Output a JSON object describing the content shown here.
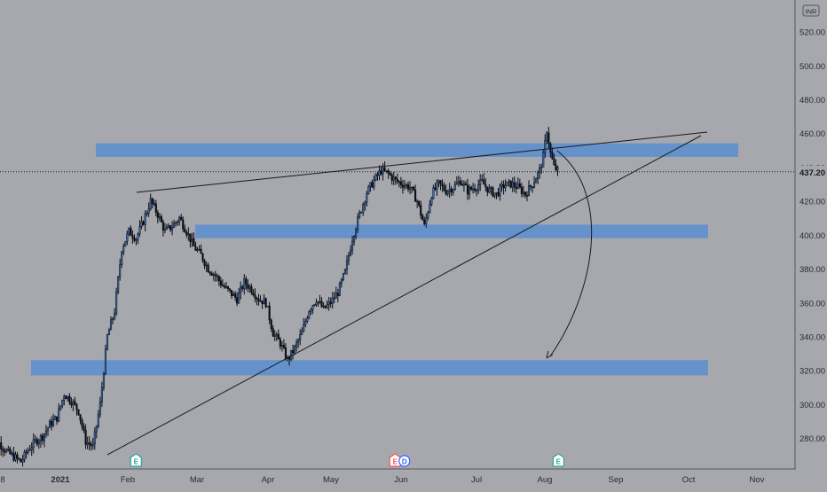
{
  "chart_data": {
    "type": "candlestick",
    "currency": "INR",
    "last_price": "437.20",
    "y_ticks": [
      "520.00",
      "500.00",
      "480.00",
      "460.00",
      "440.00",
      "420.00",
      "400.00",
      "380.00",
      "360.00",
      "340.00",
      "320.00",
      "300.00",
      "280.00"
    ],
    "x_ticks": [
      "8",
      "2021",
      "Feb",
      "Mar",
      "Apr",
      "May",
      "Jun",
      "Jul",
      "Aug",
      "Sep",
      "Oct",
      "Nov"
    ],
    "ylim": [
      262,
      530
    ],
    "zones": [
      {
        "low": 446,
        "high": 454
      },
      {
        "low": 398,
        "high": 406
      },
      {
        "low": 317,
        "high": 326
      }
    ],
    "trendlines": [
      {
        "from": [
          "Jan 28",
          422
        ],
        "to": [
          "Oct 8",
          458
        ]
      },
      {
        "from": [
          "Jan 24",
          269
        ],
        "to": [
          "Oct 8",
          456
        ]
      }
    ],
    "events": [
      {
        "label": "E",
        "date": "Feb 6",
        "color": "#26a69a"
      },
      {
        "label": "E",
        "date": "May 28",
        "color": "#ef5350"
      },
      {
        "label": "D",
        "date": "Jun 1",
        "color": "#2962ff"
      },
      {
        "label": "E",
        "date": "Aug 6",
        "color": "#26a69a"
      }
    ],
    "price_path": [
      [
        0,
        275
      ],
      [
        6,
        277
      ],
      [
        10,
        272
      ],
      [
        14,
        269
      ],
      [
        18,
        266
      ],
      [
        22,
        273
      ],
      [
        26,
        278
      ],
      [
        30,
        281
      ],
      [
        34,
        288
      ],
      [
        38,
        292
      ],
      [
        42,
        306
      ],
      [
        46,
        302
      ],
      [
        50,
        296
      ],
      [
        54,
        278
      ],
      [
        58,
        275
      ],
      [
        62,
        300
      ],
      [
        66,
        340
      ],
      [
        70,
        355
      ],
      [
        74,
        392
      ],
      [
        78,
        402
      ],
      [
        82,
        398
      ],
      [
        86,
        408
      ],
      [
        90,
        420
      ],
      [
        94,
        412
      ],
      [
        98,
        402
      ],
      [
        102,
        405
      ],
      [
        106,
        410
      ],
      [
        110,
        402
      ],
      [
        114,
        393
      ],
      [
        118,
        388
      ],
      [
        122,
        380
      ],
      [
        126,
        376
      ],
      [
        130,
        370
      ],
      [
        134,
        366
      ],
      [
        138,
        362
      ],
      [
        142,
        372
      ],
      [
        146,
        368
      ],
      [
        150,
        362
      ],
      [
        154,
        360
      ],
      [
        158,
        342
      ],
      [
        162,
        336
      ],
      [
        166,
        326
      ],
      [
        170,
        333
      ],
      [
        174,
        342
      ],
      [
        178,
        356
      ],
      [
        182,
        362
      ],
      [
        186,
        356
      ],
      [
        190,
        360
      ],
      [
        194,
        366
      ],
      [
        198,
        378
      ],
      [
        202,
        398
      ],
      [
        206,
        412
      ],
      [
        210,
        425
      ],
      [
        214,
        432
      ],
      [
        218,
        438
      ],
      [
        222,
        436
      ],
      [
        226,
        432
      ],
      [
        230,
        430
      ],
      [
        234,
        428
      ],
      [
        238,
        420
      ],
      [
        242,
        405
      ],
      [
        246,
        424
      ],
      [
        250,
        430
      ],
      [
        254,
        426
      ],
      [
        258,
        428
      ],
      [
        262,
        432
      ],
      [
        266,
        426
      ],
      [
        270,
        428
      ],
      [
        274,
        431
      ],
      [
        278,
        426
      ],
      [
        282,
        424
      ],
      [
        286,
        429
      ],
      [
        290,
        430
      ],
      [
        294,
        428
      ],
      [
        298,
        424
      ],
      [
        302,
        430
      ],
      [
        306,
        438
      ],
      [
        308,
        446
      ],
      [
        310,
        462
      ],
      [
        312,
        448
      ],
      [
        314,
        440
      ],
      [
        316,
        438
      ]
    ]
  }
}
